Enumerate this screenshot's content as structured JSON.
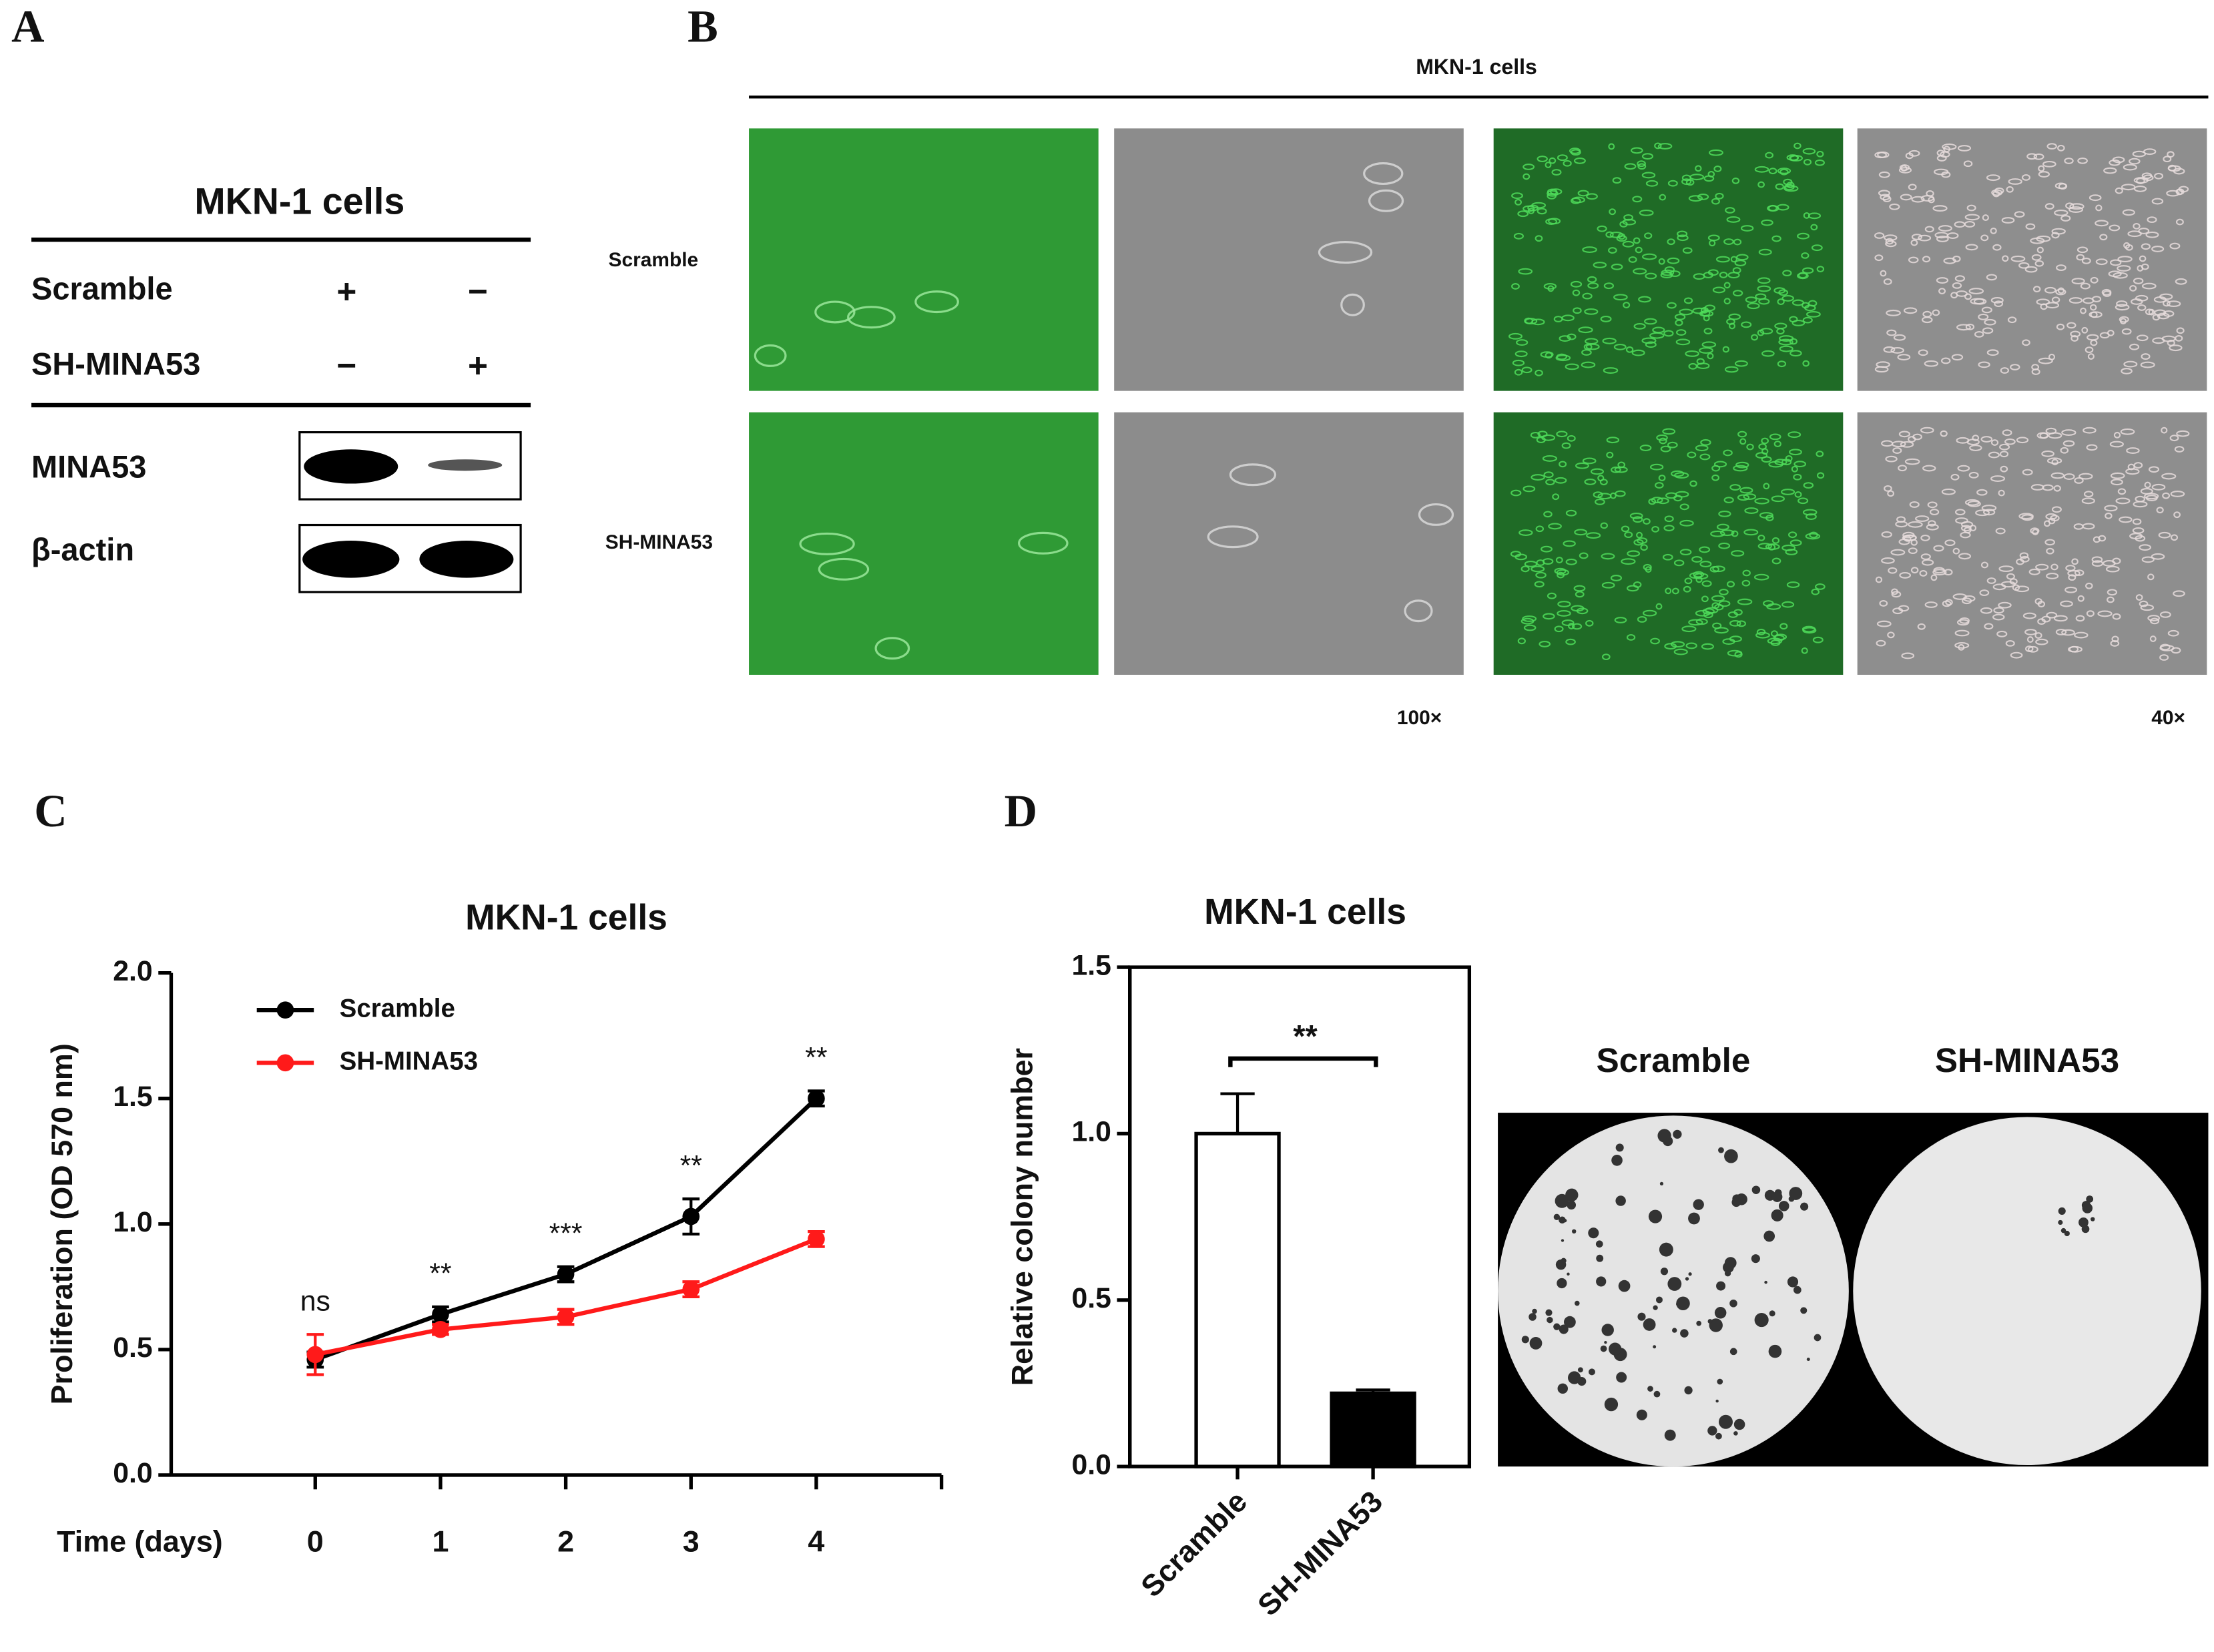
{
  "panel_labels": [
    "A",
    "B",
    "C",
    "D"
  ],
  "western_blot": {
    "title": "MKN-1 cells",
    "rows": [
      {
        "label": "Scramble",
        "lanes": [
          "+",
          "−"
        ]
      },
      {
        "label": "SH-MINA53",
        "lanes": [
          "−",
          "+"
        ]
      }
    ],
    "bands": [
      "MINA53",
      "β-actin"
    ]
  },
  "microscopy": {
    "title": "MKN-1 cells",
    "rows": [
      "Scramble",
      "SH-MINA53"
    ],
    "magnifications": [
      "100×",
      "40×"
    ]
  },
  "colony_images": {
    "labels": [
      "Scramble",
      "SH-MINA53"
    ]
  },
  "chart_data": [
    {
      "type": "line",
      "title": "MKN-1 cells",
      "x_label": "Time (days)",
      "y_label": "Proliferation (OD 570 nm)",
      "x": [
        0,
        1,
        2,
        3,
        4
      ],
      "xlim": [
        -1.15,
        5
      ],
      "xticks": [
        0,
        1,
        2,
        3,
        4
      ],
      "ylim": [
        0,
        2
      ],
      "yticks": [
        {
          "value": 0,
          "label": "0.0"
        },
        0.5,
        {
          "value": 1,
          "label": "1.0"
        },
        1.5,
        {
          "value": 2,
          "label": "2.0"
        }
      ],
      "series": [
        {
          "name": "Scramble",
          "color": "#000000",
          "values": [
            0.46,
            0.64,
            0.8,
            1.03,
            1.5
          ],
          "errors": [
            0.03,
            0.03,
            0.03,
            0.07,
            0.03
          ]
        },
        {
          "name": "SH-MINA53",
          "color": "#ff1a1a",
          "values": [
            0.48,
            0.58,
            0.63,
            0.74,
            0.94
          ],
          "errors": [
            0.08,
            0.02,
            0.03,
            0.03,
            0.03
          ]
        }
      ],
      "annotations": [
        "ns",
        "**",
        "***",
        "**",
        "**"
      ]
    },
    {
      "type": "bar",
      "title": "MKN-1 cells",
      "y_label": "Relative colony number",
      "categories": [
        "Scramble",
        "SH-MINA53"
      ],
      "values": [
        1.0,
        0.22
      ],
      "errors": [
        0.12,
        0.01
      ],
      "colors": [
        "#ffffff",
        "#000000"
      ],
      "ylim": [
        0,
        1.5
      ],
      "yticks": [
        {
          "value": 0,
          "label": "0.0"
        },
        0.5,
        {
          "value": 1,
          "label": "1.0"
        },
        1.5
      ],
      "annotation": "**"
    }
  ]
}
